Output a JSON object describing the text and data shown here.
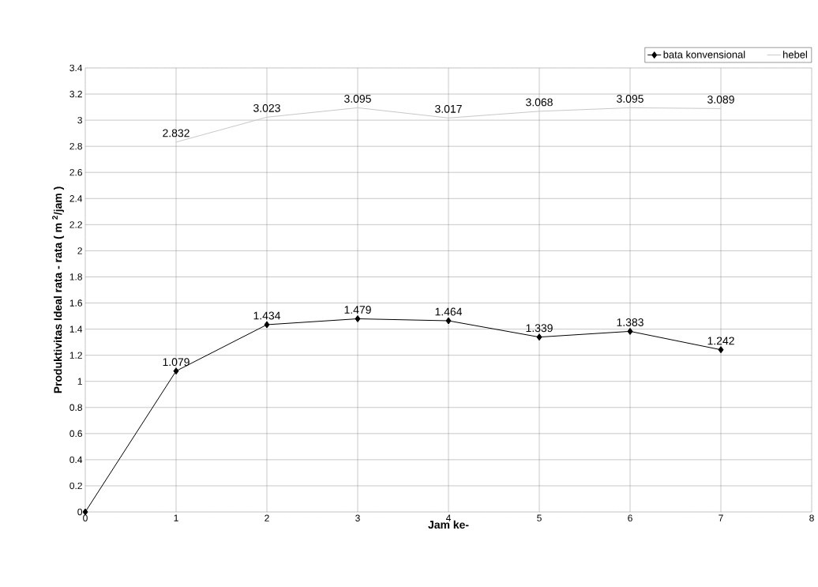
{
  "chart_data": {
    "type": "line",
    "xlabel": "Jam ke-",
    "ylabel": "Produktivitas Ideal rata - rata ( m $^{2}$/jam )",
    "xlim": [
      0,
      8
    ],
    "xticks": [
      0,
      1,
      2,
      3,
      4,
      5,
      6,
      7,
      8
    ],
    "ylim": [
      0,
      3.4
    ],
    "yticks": [
      0,
      0.2,
      0.4,
      0.6,
      0.8,
      1,
      1.2,
      1.4,
      1.6,
      1.8,
      2,
      2.2,
      2.4,
      2.6,
      2.8,
      3,
      3.2,
      3.4
    ],
    "grid": true,
    "legend": "top right",
    "series": [
      {
        "name": "bata konvensional",
        "color": "#000000",
        "marker": "diamond",
        "x": [
          0,
          1,
          2,
          3,
          4,
          5,
          6,
          7
        ],
        "values": [
          0,
          1.079,
          1.434,
          1.479,
          1.464,
          1.339,
          1.383,
          1.242
        ],
        "value_labels": [
          null,
          "1.079",
          "1.434",
          "1.479",
          "1.464",
          "1.339",
          "1.383",
          "1.242"
        ]
      },
      {
        "name": "hebel",
        "color": "#c8c8c8",
        "marker": "none",
        "x": [
          1,
          2,
          3,
          4,
          5,
          6,
          7
        ],
        "values": [
          2.832,
          3.023,
          3.095,
          3.017,
          3.068,
          3.095,
          3.089
        ],
        "value_labels": [
          "2.832",
          "3.023",
          "3.095",
          "3.017",
          "3.068",
          "3.095",
          "3.089"
        ]
      }
    ]
  }
}
